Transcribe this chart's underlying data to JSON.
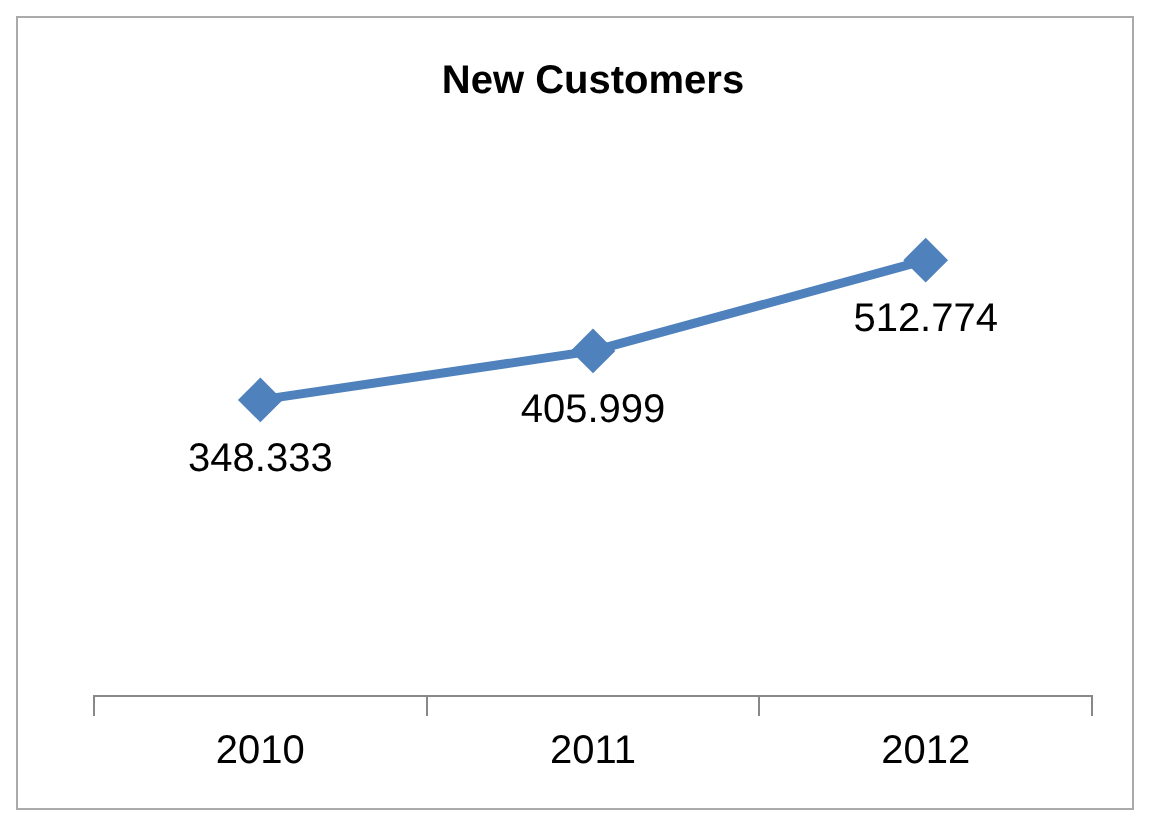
{
  "chart_data": {
    "type": "line",
    "title": "New Customers",
    "categories": [
      "2010",
      "2011",
      "2012"
    ],
    "series": [
      {
        "color": "#4f81bd",
        "values": [
          348.333,
          405.999,
          512.774
        ]
      }
    ],
    "data_labels": true,
    "marker": "diamond",
    "legend": false,
    "grid": false,
    "tick_labels": "x"
  }
}
